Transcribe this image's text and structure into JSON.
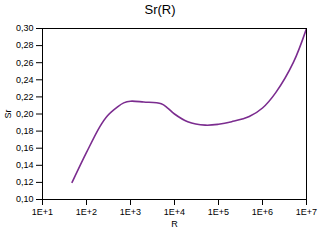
{
  "chart_data": {
    "type": "line",
    "title": "Sr(R)",
    "x_label": "R",
    "y_label": "Sr",
    "log": "x",
    "grid": false,
    "series": [
      {
        "name": "Sr",
        "color": "#7b2c8f",
        "x": [
          47,
          100,
          200,
          300,
          500,
          700,
          1000,
          2000,
          5000,
          7000,
          10000,
          20000,
          50000,
          100000,
          200000,
          500000,
          1000000,
          2000000,
          5000000,
          10000000
        ],
        "values": [
          0.12,
          0.155,
          0.185,
          0.198,
          0.208,
          0.213,
          0.215,
          0.214,
          0.212,
          0.207,
          0.2,
          0.191,
          0.187,
          0.188,
          0.191,
          0.197,
          0.207,
          0.225,
          0.26,
          0.3
        ]
      }
    ],
    "xlim": [
      10,
      10000000
    ],
    "xticks": [
      {
        "value": 10,
        "label": "1E+1"
      },
      {
        "value": 100,
        "label": "1E+2"
      },
      {
        "value": 1000,
        "label": "1E+3"
      },
      {
        "value": 10000,
        "label": "1E+4"
      },
      {
        "value": 100000,
        "label": "1E+5"
      },
      {
        "value": 1000000,
        "label": "1E+6"
      },
      {
        "value": 10000000,
        "label": "1E+7"
      }
    ],
    "ylim": [
      0.1,
      0.3
    ],
    "yticks": [
      {
        "value": 0.1,
        "label": "0,10"
      },
      {
        "value": 0.12,
        "label": "0,12"
      },
      {
        "value": 0.14,
        "label": "0,14"
      },
      {
        "value": 0.16,
        "label": "0,16"
      },
      {
        "value": 0.18,
        "label": "0,18"
      },
      {
        "value": 0.2,
        "label": "0,20"
      },
      {
        "value": 0.22,
        "label": "0,22"
      },
      {
        "value": 0.24,
        "label": "0,24"
      },
      {
        "value": 0.26,
        "label": "0,26"
      },
      {
        "value": 0.28,
        "label": "0,28"
      },
      {
        "value": 0.3,
        "label": "0,30"
      }
    ]
  }
}
